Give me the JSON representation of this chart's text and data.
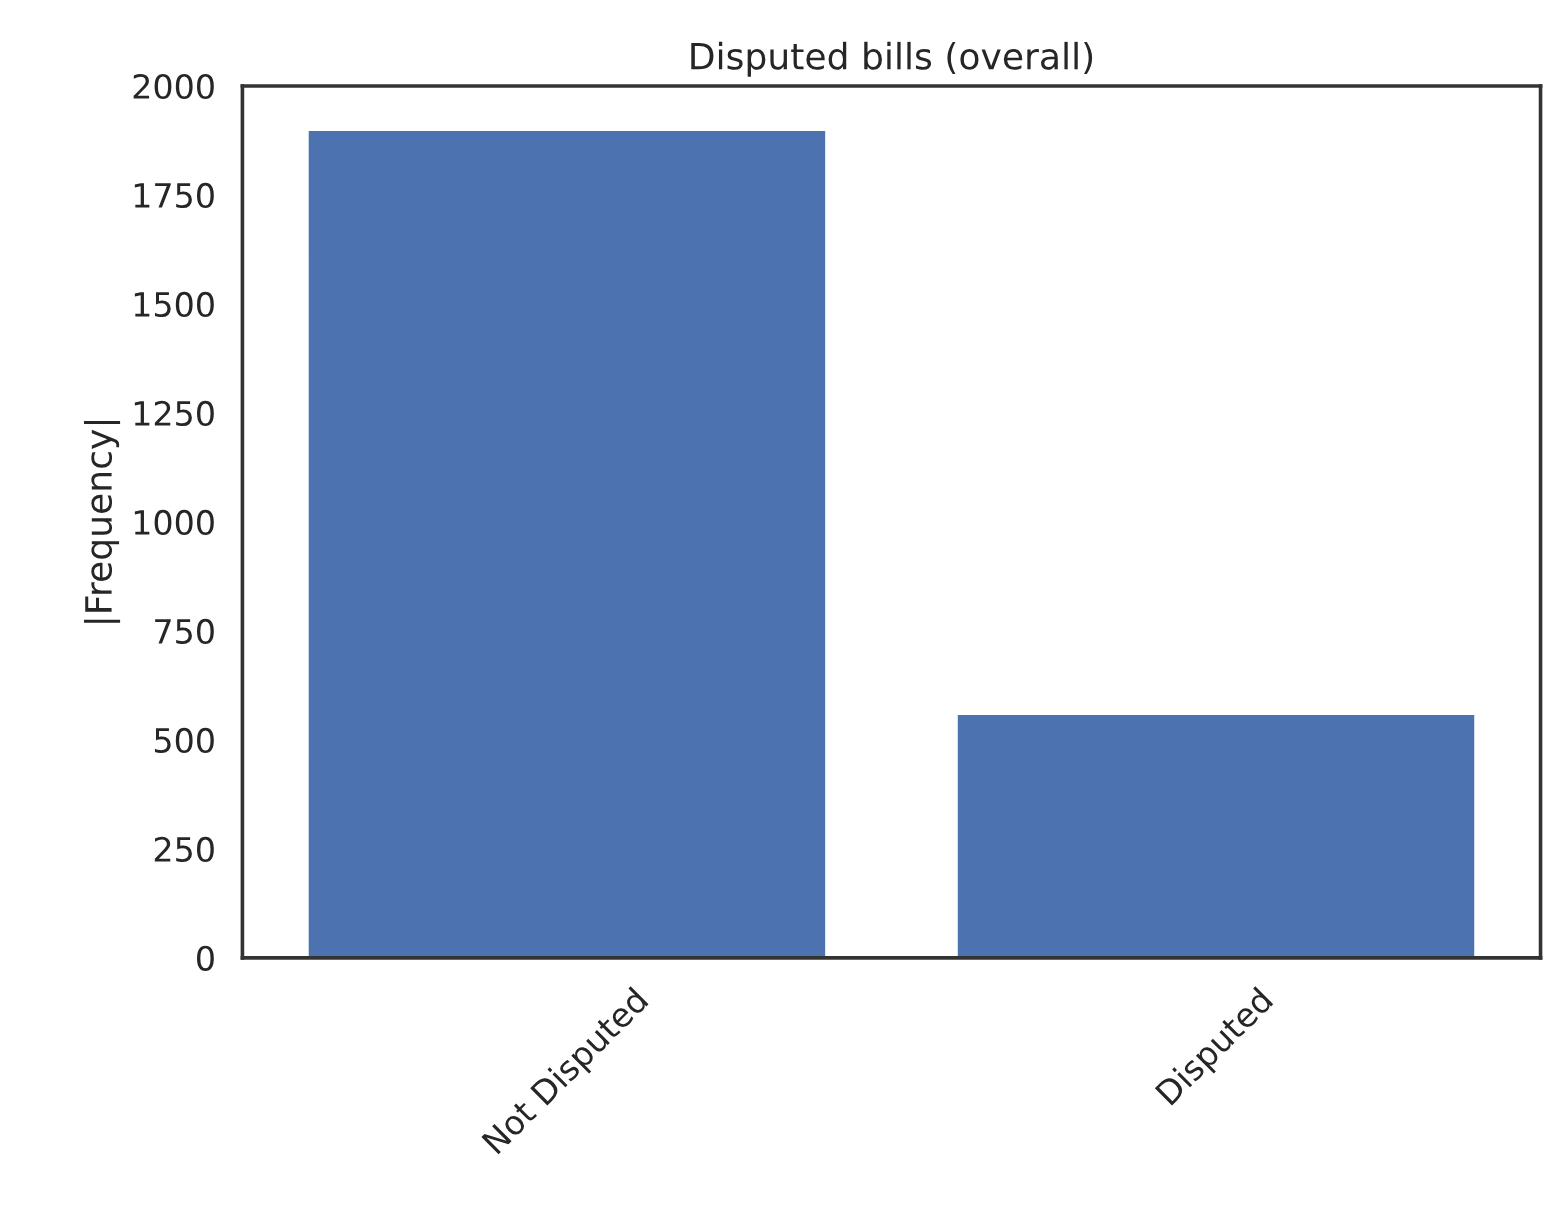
{
  "chart_data": {
    "type": "bar",
    "title": "Disputed bills (overall)",
    "ylabel": "|Frequency|",
    "categories": [
      "Not Disputed",
      "Disputed"
    ],
    "values": [
      1900,
      560
    ],
    "color": "#4c72b0",
    "ylim": [
      0,
      2000
    ],
    "yticks": [
      0,
      250,
      500,
      750,
      1000,
      1250,
      1500,
      1750,
      2000
    ],
    "grid": false,
    "legend": false
  }
}
